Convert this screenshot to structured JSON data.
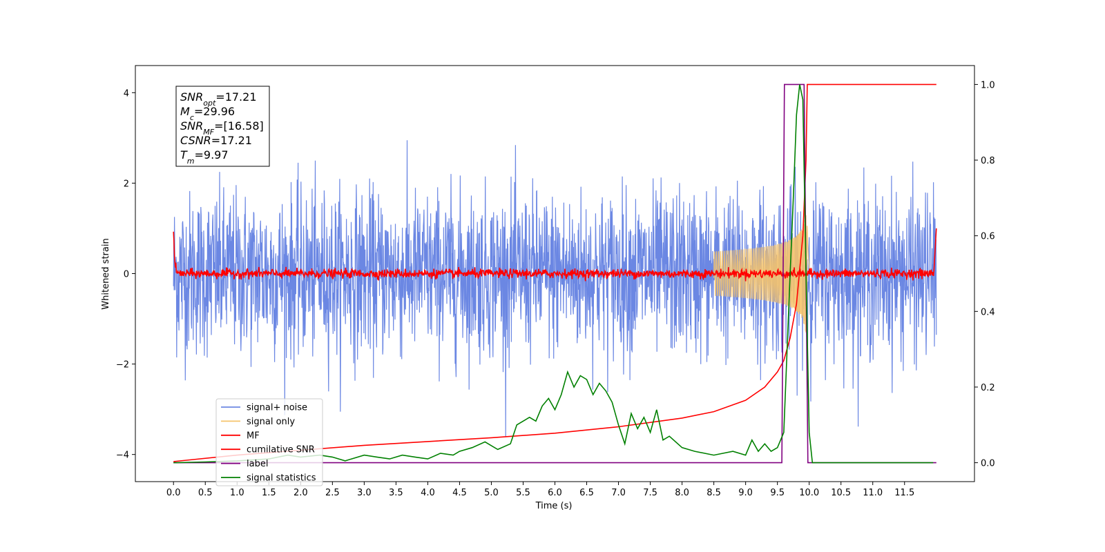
{
  "chart_data": {
    "type": "line",
    "xlabel": "Time (s)",
    "ylabel_left": "Whitened strain",
    "x_ticks": [
      "0.0",
      "0.5",
      "1.0",
      "1.5",
      "2.0",
      "2.5",
      "3.0",
      "3.5",
      "4.0",
      "4.5",
      "5.0",
      "5.5",
      "6.0",
      "6.5",
      "7.0",
      "7.5",
      "8.0",
      "8.5",
      "9.0",
      "9.5",
      "10.0",
      "10.5",
      "11.0",
      "11.5"
    ],
    "left_ticks": [
      -4,
      -2,
      0,
      2,
      4
    ],
    "left_tick_labels": [
      "−4",
      "−2",
      "0",
      "2",
      "4"
    ],
    "right_ticks": [
      0.0,
      0.2,
      0.4,
      0.6,
      0.8,
      1.0
    ],
    "right_tick_labels": [
      "0.0",
      "0.2",
      "0.4",
      "0.6",
      "0.8",
      "1.0"
    ],
    "xlim": [
      -0.6,
      12.6
    ],
    "ylim_left": [
      -4.6,
      4.6
    ],
    "ylim_right": [
      -0.05,
      1.05
    ],
    "grid": false,
    "legend_position": "lower-left",
    "annotation": {
      "lines": [
        {
          "name": "SNR",
          "sub": "opt",
          "value": "=17.21"
        },
        {
          "name": "M",
          "sub": "c",
          "value": "=29.96"
        },
        {
          "name": "SNR",
          "sub": "MF",
          "value": "=[16.58]"
        },
        {
          "name": "CSNR",
          "sub": "",
          "value": "=17.21"
        },
        {
          "name": "T",
          "sub": "m",
          "value": "=9.97"
        }
      ]
    },
    "series": [
      {
        "name": "signal+ noise",
        "color": "#6b87e3",
        "axis": "left",
        "noise_amplitude_std": 0.9,
        "t_range": [
          0.0,
          12.0
        ]
      },
      {
        "name": "signal only",
        "color": "#f5c36b",
        "axis": "left",
        "chirp_peak_amplitude": 1.3,
        "merger_time": 9.97
      },
      {
        "name": "MF",
        "color": "#ff0000",
        "axis": "left",
        "baseline": 0.0,
        "edge_value": 1.0
      },
      {
        "name": "cumilative SNR",
        "color": "#ff0000",
        "axis": "right",
        "x": [
          0.0,
          1.0,
          2.0,
          3.0,
          4.0,
          5.0,
          6.0,
          7.0,
          8.0,
          8.5,
          9.0,
          9.3,
          9.5,
          9.6,
          9.7,
          9.8,
          9.9,
          9.95,
          9.97,
          10.0,
          12.0
        ],
        "values": [
          0.003,
          0.02,
          0.033,
          0.046,
          0.056,
          0.066,
          0.078,
          0.095,
          0.118,
          0.135,
          0.165,
          0.2,
          0.24,
          0.27,
          0.33,
          0.42,
          0.6,
          0.8,
          1.0,
          1.0,
          1.0
        ]
      },
      {
        "name": "label",
        "color": "#800080",
        "axis": "right",
        "x": [
          0.0,
          9.57,
          9.61,
          9.92,
          9.98,
          12.0
        ],
        "values": [
          0.0,
          0.0,
          1.0,
          1.0,
          0.0,
          0.0
        ]
      },
      {
        "name": "signal statistics",
        "color": "#008000",
        "axis": "right",
        "x": [
          0.0,
          0.5,
          1.0,
          1.5,
          1.8,
          2.0,
          2.3,
          2.5,
          2.7,
          2.8,
          3.0,
          3.2,
          3.4,
          3.6,
          3.8,
          4.0,
          4.2,
          4.4,
          4.5,
          4.7,
          4.9,
          5.0,
          5.1,
          5.3,
          5.4,
          5.6,
          5.7,
          5.8,
          5.9,
          6.0,
          6.1,
          6.2,
          6.3,
          6.4,
          6.5,
          6.6,
          6.7,
          6.8,
          6.9,
          7.0,
          7.1,
          7.2,
          7.3,
          7.4,
          7.5,
          7.6,
          7.7,
          7.8,
          8.0,
          8.2,
          8.5,
          8.8,
          9.0,
          9.1,
          9.2,
          9.3,
          9.4,
          9.5,
          9.6,
          9.7,
          9.75,
          9.8,
          9.85,
          9.9,
          9.95,
          10.0,
          10.05,
          10.2,
          11.0,
          11.5,
          11.95
        ],
        "values": [
          0.0,
          0.002,
          0.005,
          0.01,
          0.02,
          0.015,
          0.02,
          0.015,
          0.005,
          0.01,
          0.02,
          0.015,
          0.01,
          0.02,
          0.015,
          0.01,
          0.025,
          0.02,
          0.03,
          0.04,
          0.055,
          0.045,
          0.035,
          0.05,
          0.1,
          0.12,
          0.11,
          0.15,
          0.17,
          0.14,
          0.18,
          0.24,
          0.2,
          0.23,
          0.22,
          0.18,
          0.21,
          0.19,
          0.16,
          0.1,
          0.05,
          0.13,
          0.09,
          0.12,
          0.08,
          0.14,
          0.06,
          0.07,
          0.04,
          0.03,
          0.02,
          0.03,
          0.02,
          0.06,
          0.03,
          0.05,
          0.03,
          0.04,
          0.08,
          0.5,
          0.7,
          0.92,
          1.0,
          0.96,
          0.5,
          0.08,
          0.0,
          0.0,
          0.0,
          0.0,
          0.0
        ]
      }
    ]
  }
}
